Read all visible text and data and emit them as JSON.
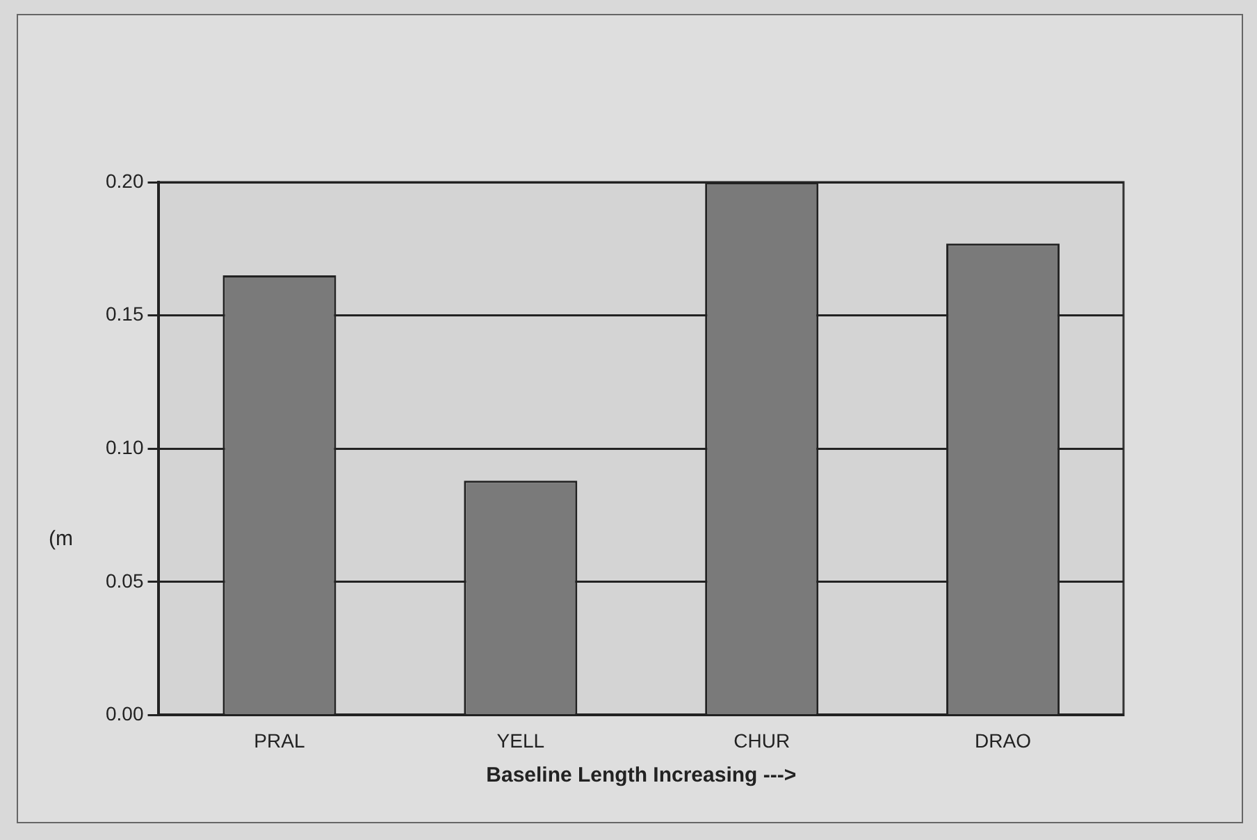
{
  "chart_data": {
    "type": "bar",
    "ylabel": "(m",
    "xlabel": "Baseline Length Increasing --->",
    "categories": [
      "PRAL",
      "YELL",
      "CHUR",
      "DRAO"
    ],
    "values": [
      0.165,
      0.088,
      0.2,
      0.177
    ],
    "color": "#7a7a7a",
    "ylim": [
      0,
      0.2
    ],
    "yticks": [
      {
        "value": 0,
        "label": "0.00"
      },
      {
        "value": 0.05,
        "label": "0.05"
      },
      {
        "value": 0.1,
        "label": "0.10"
      },
      {
        "value": 0.15,
        "label": "0.15"
      },
      {
        "value": 0.2,
        "label": "0.20"
      }
    ],
    "grid": "y",
    "legend": false
  }
}
